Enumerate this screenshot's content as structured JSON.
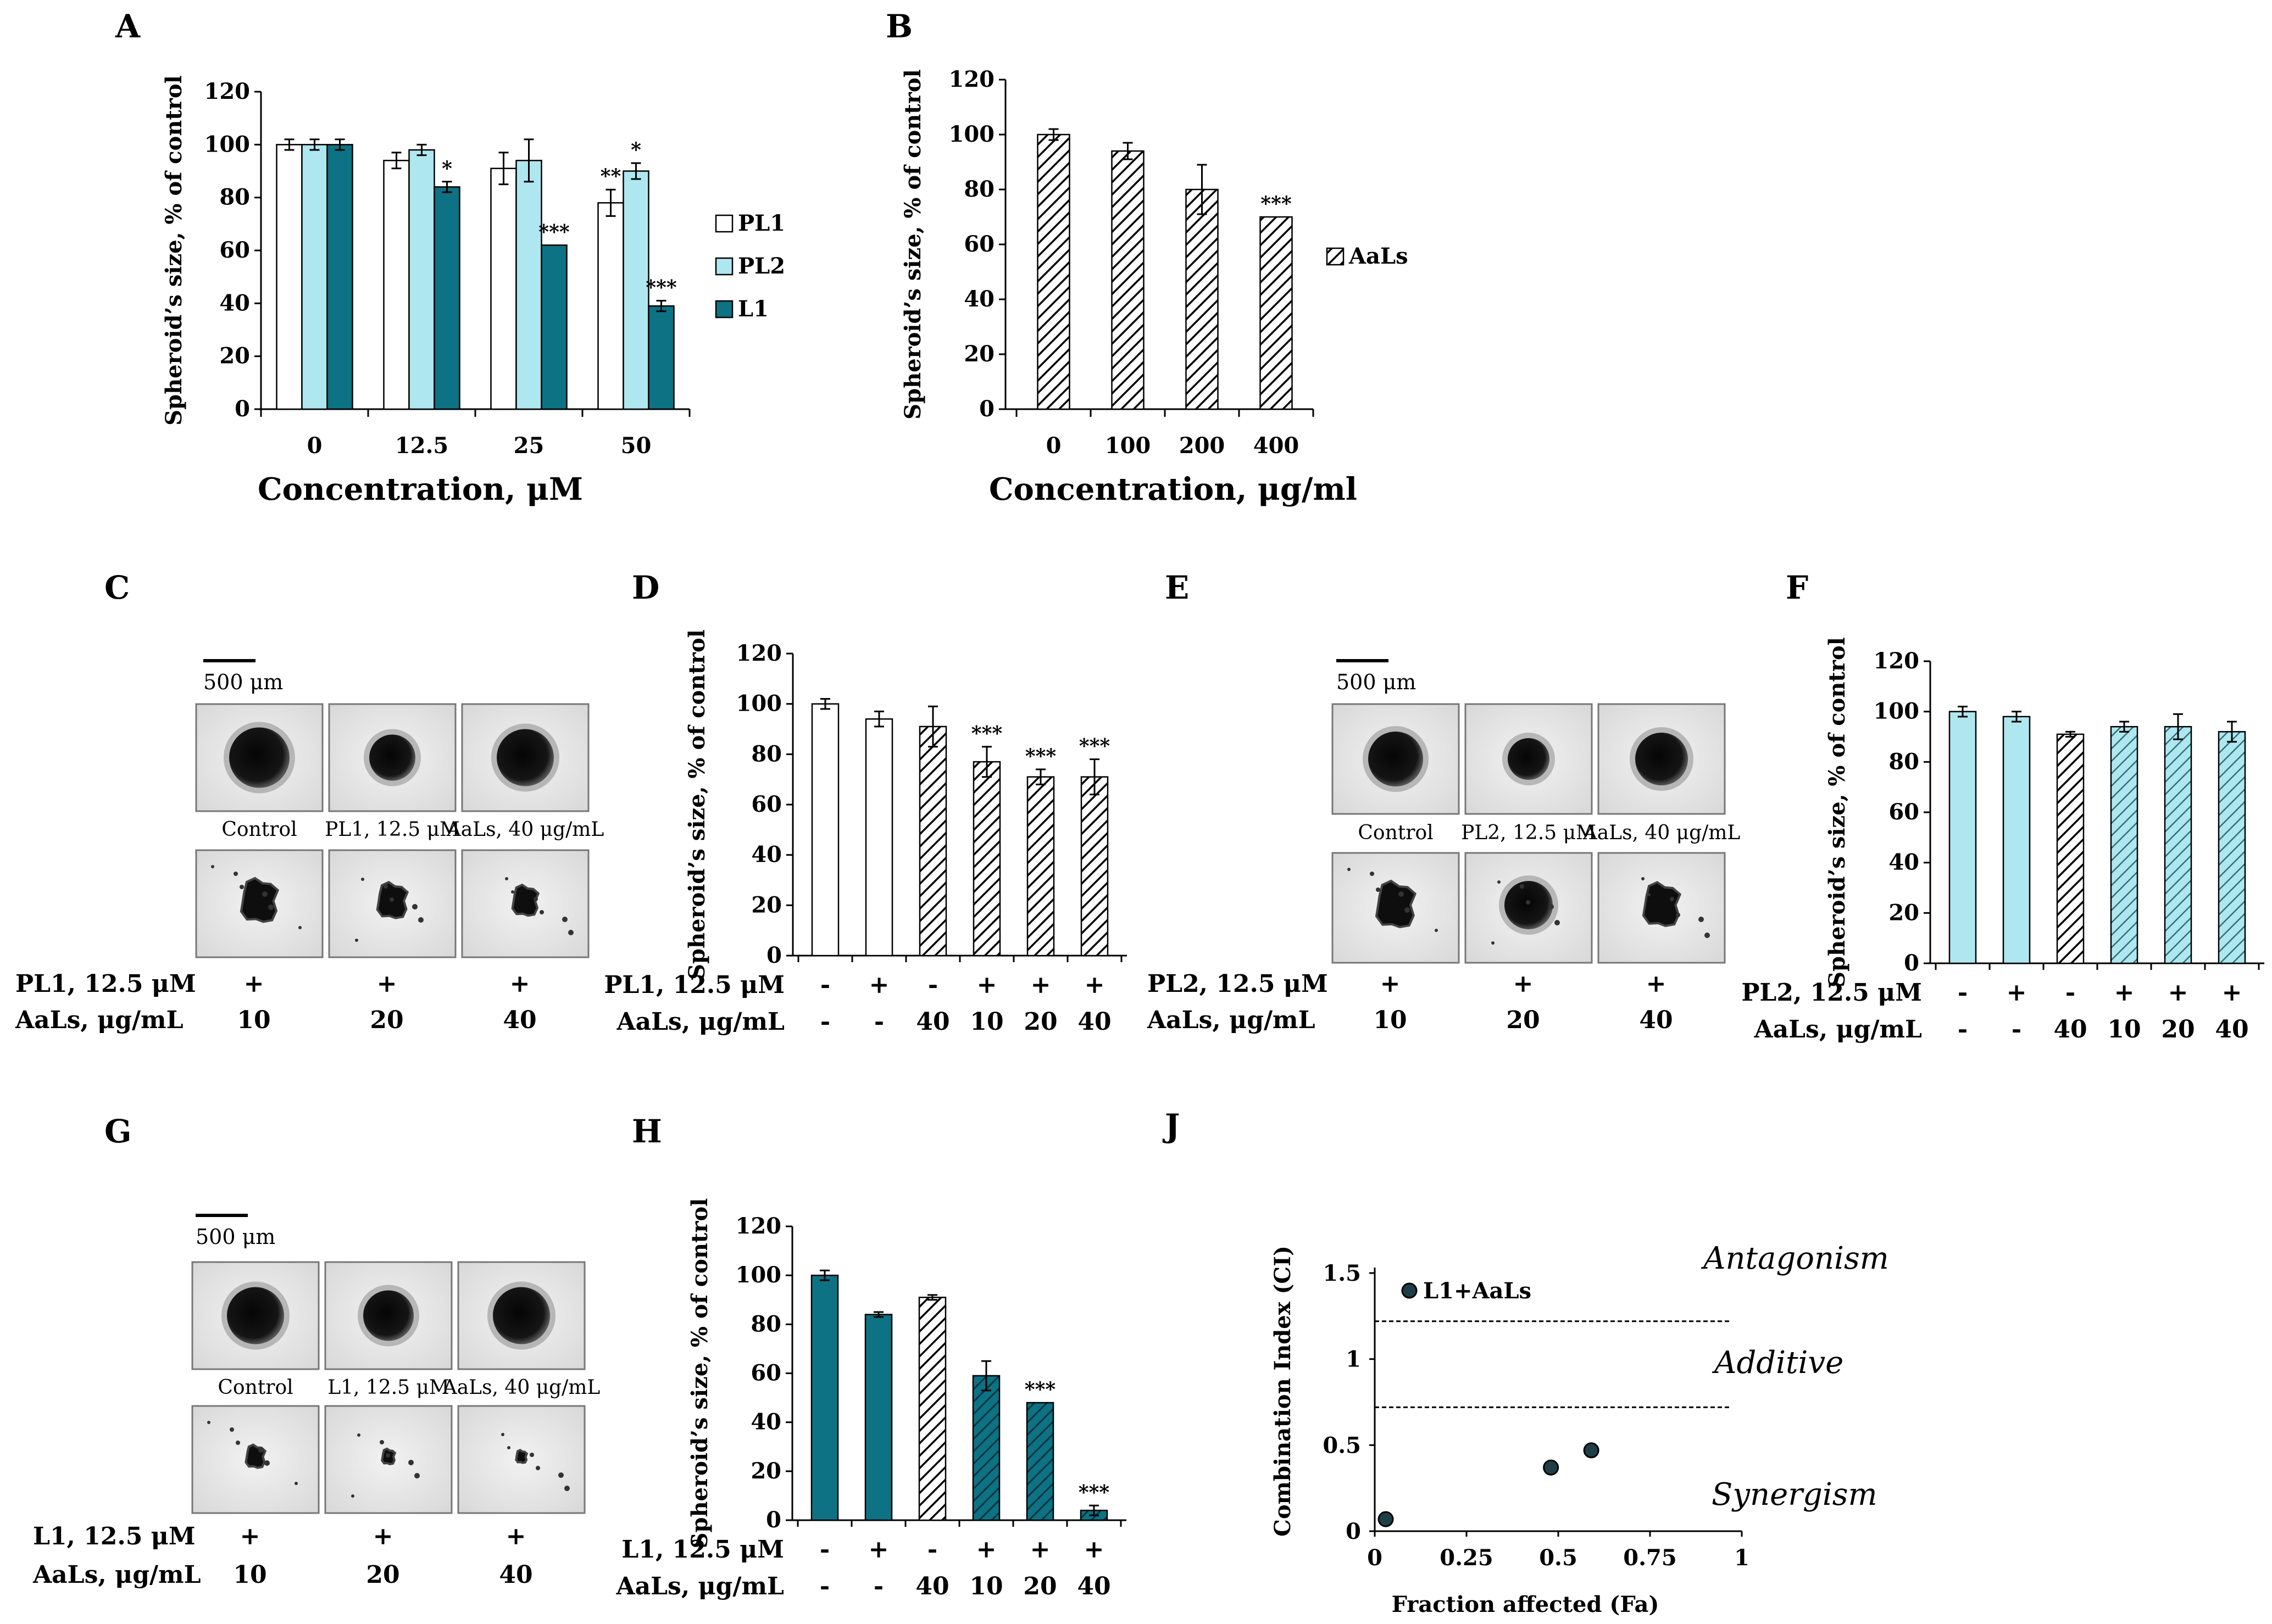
{
  "panels": {
    "A": "A",
    "B": "B",
    "C": "C",
    "D": "D",
    "E": "E",
    "F": "F",
    "G": "G",
    "H": "H",
    "J": "J"
  },
  "colors": {
    "white": "#ffffff",
    "light_blue": "#aee7f0",
    "teal": "#0d7283",
    "dark": "#1f3f46",
    "axis": "#000000"
  },
  "chart_data": [
    {
      "id": "A",
      "type": "bar",
      "categories": [
        "0",
        "12.5",
        "25",
        "50"
      ],
      "xlabel": "Concentration, μM",
      "ylabel": "Spheroid’s size, % of control",
      "ylim": [
        0,
        120
      ],
      "yticks": [
        0,
        20,
        40,
        60,
        80,
        100,
        120
      ],
      "legend_position": "right",
      "series": [
        {
          "name": "PL1",
          "color": "#ffffff",
          "values": [
            100,
            94,
            91,
            78
          ],
          "errors": [
            2,
            3,
            6,
            5
          ],
          "stars": [
            "",
            "",
            "",
            "**"
          ]
        },
        {
          "name": "PL2",
          "color": "#aee7f0",
          "values": [
            100,
            98,
            94,
            90
          ],
          "errors": [
            2,
            2,
            8,
            3
          ],
          "stars": [
            "",
            "",
            "",
            "*"
          ]
        },
        {
          "name": "L1",
          "color": "#0d7283",
          "values": [
            100,
            84,
            62,
            39
          ],
          "errors": [
            2,
            2,
            0,
            2
          ],
          "stars": [
            "",
            "*",
            "***",
            "***"
          ]
        }
      ]
    },
    {
      "id": "B",
      "type": "bar",
      "categories": [
        "0",
        "100",
        "200",
        "400"
      ],
      "xlabel": "Concentration, μg/ml",
      "ylabel": "Spheroid’s size, % of control",
      "ylim": [
        0,
        120
      ],
      "yticks": [
        0,
        20,
        40,
        60,
        80,
        100,
        120
      ],
      "legend_position": "right",
      "series": [
        {
          "name": "AaLs",
          "pattern": "hatch-white",
          "values": [
            100,
            94,
            80,
            70
          ],
          "errors": [
            2,
            3,
            9,
            0
          ],
          "stars": [
            "",
            "",
            "",
            "***"
          ]
        }
      ]
    },
    {
      "id": "D",
      "type": "bar",
      "ylabel": "Spheroid’s size, % of control",
      "ylim": [
        0,
        120
      ],
      "yticks": [
        0,
        20,
        40,
        60,
        80,
        100,
        120
      ],
      "row_labels": [
        "PL1, 12.5 μM",
        "AaLs, μg/mL"
      ],
      "row1": [
        "-",
        "+",
        "-",
        "+",
        "+",
        "+"
      ],
      "row2": [
        "-",
        "-",
        "40",
        "10",
        "20",
        "40"
      ],
      "values": [
        100,
        94,
        91,
        77,
        71,
        71
      ],
      "errors": [
        2,
        3,
        8,
        6,
        3,
        7
      ],
      "patterns": [
        "white",
        "white",
        "hatch-white",
        "hatch-white",
        "hatch-white",
        "hatch-white"
      ],
      "stars": [
        "",
        "",
        "",
        "***",
        "***",
        "***"
      ]
    },
    {
      "id": "F",
      "type": "bar",
      "ylabel": "Spheroid’s size, % of control",
      "ylim": [
        0,
        120
      ],
      "yticks": [
        0,
        20,
        40,
        60,
        80,
        100,
        120
      ],
      "row_labels": [
        "PL2, 12.5 μM",
        "AaLs, μg/mL"
      ],
      "row1": [
        "-",
        "+",
        "-",
        "+",
        "+",
        "+"
      ],
      "row2": [
        "-",
        "-",
        "40",
        "10",
        "20",
        "40"
      ],
      "values": [
        100,
        98,
        91,
        94,
        94,
        92
      ],
      "errors": [
        2,
        2,
        1,
        2,
        5,
        4
      ],
      "patterns": [
        "light",
        "light",
        "hatch-white",
        "hatch-light",
        "hatch-light",
        "hatch-light"
      ],
      "stars": [
        "",
        "",
        "",
        "",
        "",
        ""
      ]
    },
    {
      "id": "H",
      "type": "bar",
      "ylabel": "Spheroid’s size, % of control",
      "ylim": [
        0,
        120
      ],
      "yticks": [
        0,
        20,
        40,
        60,
        80,
        100,
        120
      ],
      "row_labels": [
        "L1, 12.5 μM",
        "AaLs, μg/mL"
      ],
      "row1": [
        "-",
        "+",
        "-",
        "+",
        "+",
        "+"
      ],
      "row2": [
        "-",
        "-",
        "40",
        "10",
        "20",
        "40"
      ],
      "values": [
        100,
        84,
        91,
        59,
        48,
        4
      ],
      "errors": [
        2,
        1,
        1,
        6,
        0,
        2
      ],
      "patterns": [
        "teal",
        "teal",
        "hatch-white",
        "hatch-teal",
        "hatch-teal",
        "hatch-teal"
      ],
      "stars": [
        "",
        "",
        "",
        "",
        "***",
        "***"
      ]
    },
    {
      "id": "J",
      "type": "scatter",
      "xlabel": "Fraction affected (Fa)",
      "ylabel": "Combination Index (CI)",
      "xlim": [
        0,
        1
      ],
      "ylim": [
        0,
        1.5
      ],
      "xticks": [
        "0",
        "0.25",
        "0.5",
        "0.75",
        "1"
      ],
      "yticks": [
        "0",
        "0.5",
        "1",
        "1.5"
      ],
      "legend": "L1+AaLs",
      "points": [
        {
          "x": 0.03,
          "y": 0.07
        },
        {
          "x": 0.48,
          "y": 0.37
        },
        {
          "x": 0.59,
          "y": 0.47
        }
      ],
      "thresholds": [
        1.22,
        0.72
      ],
      "regions": [
        "Antagonism",
        "Additive",
        "Synergism"
      ]
    }
  ],
  "image_panels": {
    "C": {
      "scale_label": "500 μm",
      "captions": [
        "Control",
        "PL1, 12.5 μM",
        "AaLs, 40 μg/mL"
      ],
      "row_labels": [
        "PL1, 12.5 μM",
        "AaLs, μg/mL"
      ],
      "row1": [
        "+",
        "+",
        "+"
      ],
      "row2": [
        "10",
        "20",
        "40"
      ]
    },
    "E": {
      "scale_label": "500 μm",
      "captions": [
        "Control",
        "PL2, 12.5 μM",
        "AaLs, 40 μg/mL"
      ],
      "row_labels": [
        "PL2, 12.5 μM",
        "AaLs, μg/mL"
      ],
      "row1": [
        "+",
        "+",
        "+"
      ],
      "row2": [
        "10",
        "20",
        "40"
      ]
    },
    "G": {
      "scale_label": "500 μm",
      "captions": [
        "Control",
        "L1, 12.5 μM",
        "AaLs, 40 μg/mL"
      ],
      "row_labels": [
        "L1, 12.5 μM",
        "AaLs, μg/mL"
      ],
      "row1": [
        "+",
        "+",
        "+"
      ],
      "row2": [
        "10",
        "20",
        "40"
      ]
    }
  }
}
